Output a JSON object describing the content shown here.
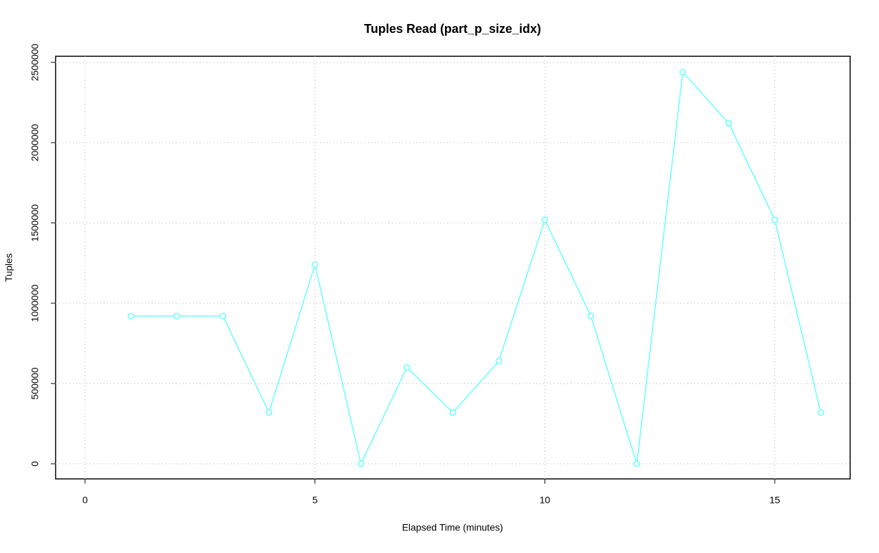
{
  "chart_data": {
    "type": "line",
    "title": "Tuples Read (part_p_size_idx)",
    "x_label": "Elapsed Time (minutes)",
    "y_label": "Tuples",
    "x": [
      1,
      2,
      3,
      4,
      5,
      6,
      7,
      8,
      9,
      10,
      11,
      12,
      13,
      14,
      15,
      16
    ],
    "series": [
      {
        "name": "Tuples",
        "color": "#66ffff",
        "values": [
          920000,
          920000,
          920000,
          320000,
          1240000,
          0,
          600000,
          320000,
          640000,
          1520000,
          920000,
          0,
          2440000,
          2120000,
          1520000,
          320000
        ]
      }
    ],
    "xlim": [
      -0.64,
      16.64
    ],
    "ylim": [
      -94000,
      2538000
    ],
    "xticks": [
      0,
      5,
      10,
      15
    ],
    "yticks": [
      0,
      500000,
      1000000,
      1500000,
      2000000,
      2500000
    ],
    "grid": true
  }
}
